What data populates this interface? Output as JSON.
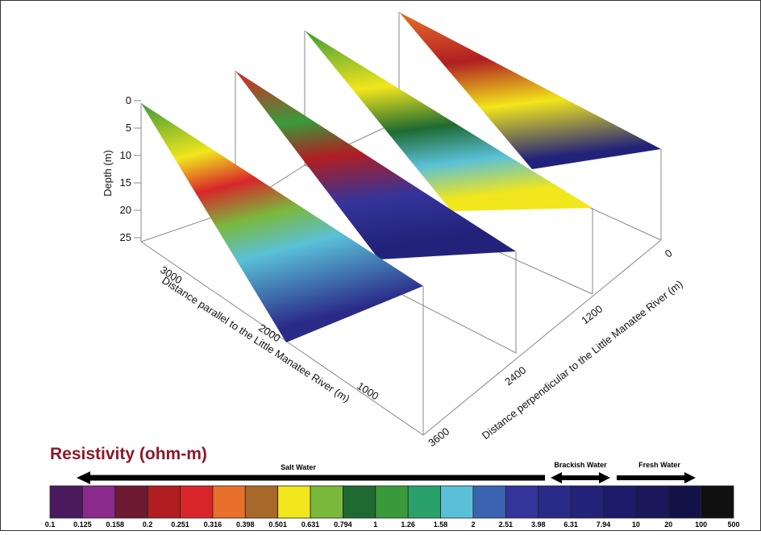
{
  "figure": {
    "depth_axis": {
      "label": "Depth (m)",
      "ticks": [
        0,
        5,
        10,
        15,
        20,
        25
      ]
    },
    "parallel_axis": {
      "label": "Distance parallel to the Little Manatee River (m)",
      "ticks": [
        3000,
        2000,
        1000
      ]
    },
    "perpendicular_axis": {
      "label": "Distance perpendicular to the Little Manatee River (m)",
      "ticks": [
        0,
        1200,
        2400,
        3600
      ]
    },
    "legend": {
      "title": "Resistivity (ohm-m)",
      "zones": [
        "Salt Water",
        "Brackish Water",
        "Fresh Water"
      ],
      "boundaries": [
        0.1,
        0.125,
        0.158,
        0.2,
        0.251,
        0.316,
        0.398,
        0.501,
        0.631,
        0.794,
        1,
        1.26,
        1.58,
        2,
        2.51,
        3.98,
        6.31,
        7.94,
        10,
        20,
        100,
        500
      ],
      "colors": [
        "#4a1a5c",
        "#8a2a8c",
        "#6e1a33",
        "#b01e22",
        "#d8262a",
        "#e8702a",
        "#a8682a",
        "#f2e61c",
        "#7ab83c",
        "#1e6a32",
        "#3a9a3a",
        "#2aa06a",
        "#5ac0d8",
        "#3a64b0",
        "#34349a",
        "#2a2a88",
        "#22227a",
        "#1c1c6a",
        "#18185a",
        "#121248",
        "#101010"
      ]
    }
  }
}
